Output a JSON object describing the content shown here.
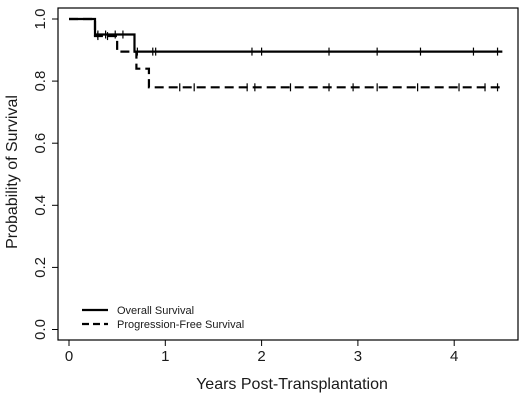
{
  "chart_data": {
    "type": "line",
    "title": "",
    "xlabel": "Years Post-Transplantation",
    "ylabel": "Probability of Survival",
    "xlim": [
      0,
      4.6
    ],
    "ylim": [
      0,
      1.0
    ],
    "x_ticks": [
      0,
      1,
      2,
      3,
      4
    ],
    "y_ticks": [
      "0.0",
      "0.2",
      "0.4",
      "0.6",
      "0.8",
      "1.0"
    ],
    "grid": false,
    "legend_position": "bottom-left",
    "series": [
      {
        "name": "Overall Survival",
        "style": "solid",
        "color": "#000000",
        "steps": [
          [
            0,
            1.0
          ],
          [
            0.27,
            0.95
          ],
          [
            0.68,
            0.895
          ],
          [
            4.5,
            0.895
          ]
        ],
        "censor_marks": [
          [
            0.3,
            0.95
          ],
          [
            0.38,
            0.95
          ],
          [
            0.48,
            0.95
          ],
          [
            0.56,
            0.95
          ],
          [
            0.71,
            0.895
          ],
          [
            0.87,
            0.895
          ],
          [
            0.9,
            0.895
          ],
          [
            1.9,
            0.895
          ],
          [
            2.0,
            0.895
          ],
          [
            2.7,
            0.895
          ],
          [
            3.2,
            0.895
          ],
          [
            3.65,
            0.895
          ],
          [
            4.2,
            0.895
          ],
          [
            4.45,
            0.895
          ]
        ]
      },
      {
        "name": "Progression-Free Survival",
        "style": "dashed",
        "color": "#000000",
        "steps": [
          [
            0,
            1.0
          ],
          [
            0.27,
            0.945
          ],
          [
            0.5,
            0.895
          ],
          [
            0.7,
            0.84
          ],
          [
            0.83,
            0.78
          ],
          [
            4.5,
            0.78
          ]
        ],
        "censor_marks": [
          [
            0.3,
            0.945
          ],
          [
            0.4,
            0.945
          ],
          [
            1.15,
            0.78
          ],
          [
            1.3,
            0.78
          ],
          [
            1.85,
            0.78
          ],
          [
            1.93,
            0.78
          ],
          [
            2.3,
            0.78
          ],
          [
            2.7,
            0.78
          ],
          [
            2.95,
            0.78
          ],
          [
            3.2,
            0.78
          ],
          [
            3.62,
            0.78
          ],
          [
            4.05,
            0.78
          ],
          [
            4.32,
            0.78
          ],
          [
            4.45,
            0.78
          ]
        ]
      }
    ]
  }
}
